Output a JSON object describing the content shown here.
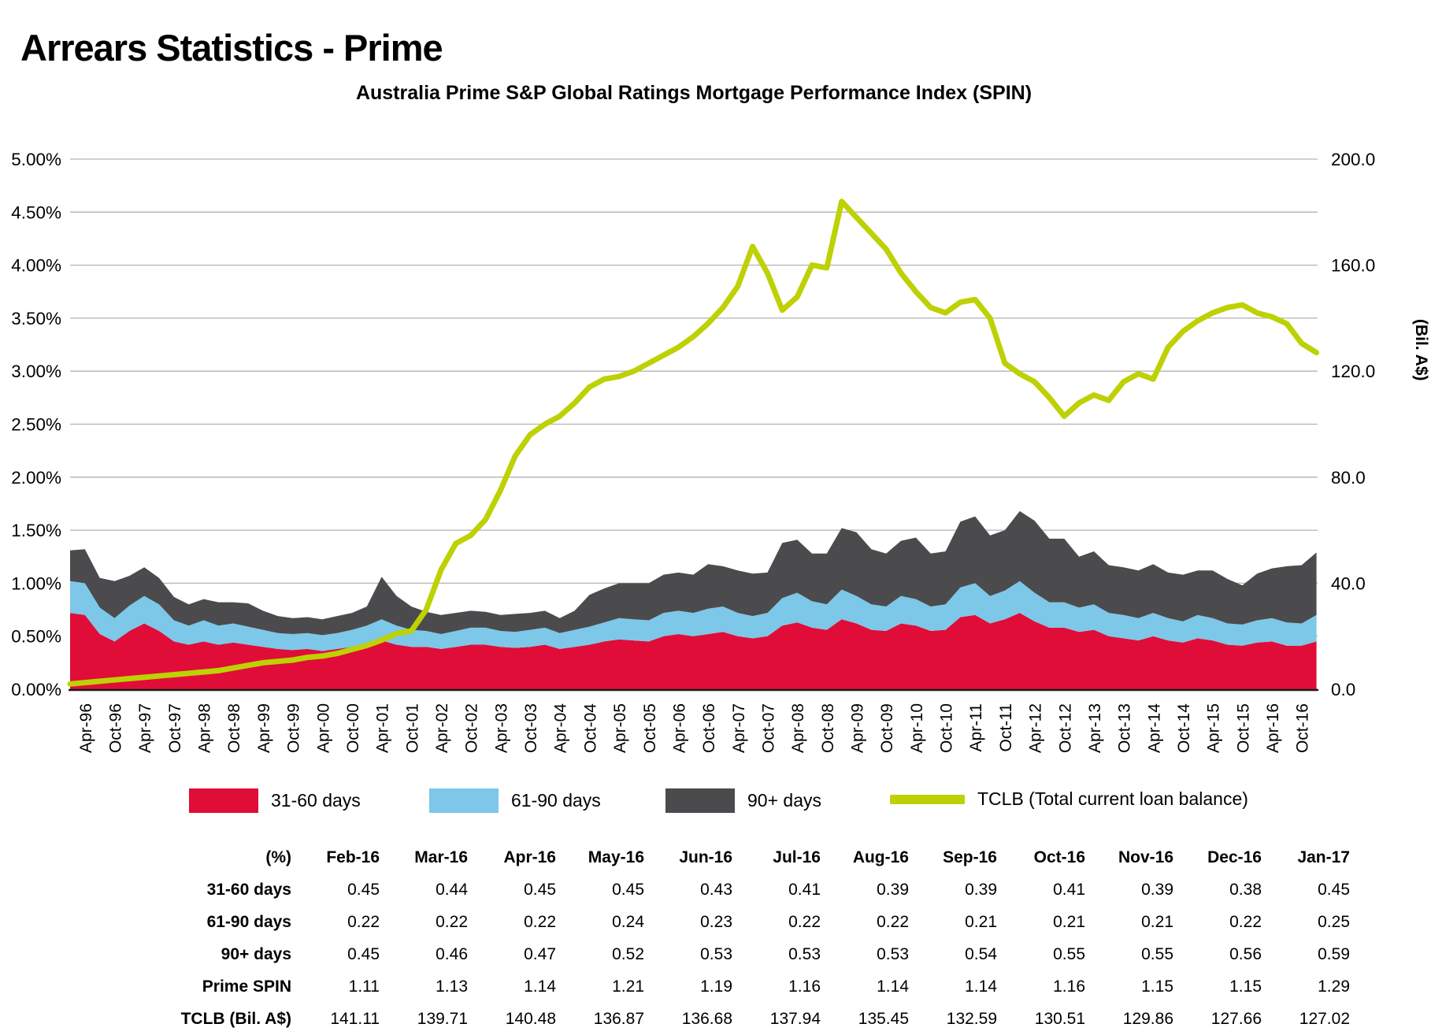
{
  "page": {
    "title": "Arrears Statistics - Prime"
  },
  "chart": {
    "subtitle": "Australia Prime S&P Global Ratings Mortgage Performance Index (SPIN)",
    "right_axis_title": "(Bil. A$)",
    "left_axis_labels": [
      "5.00%",
      "4.50%",
      "4.00%",
      "3.50%",
      "3.00%",
      "2.50%",
      "2.00%",
      "1.50%",
      "1.00%",
      "0.50%",
      "0.00%"
    ],
    "right_axis_labels": [
      "200.0",
      "160.0",
      "120.0",
      "80.0",
      "40.0",
      "0.0"
    ],
    "colors": {
      "red": "#e00d38",
      "blue": "#7dc7e8",
      "gray": "#4b4b4d",
      "lime": "#bdd104",
      "gridline": "#b3b3b3",
      "axis": "#1a1a1a"
    }
  },
  "legend": {
    "items": [
      {
        "label": "31-60 days",
        "color": "#e00d38",
        "type": "area"
      },
      {
        "label": "61-90 days",
        "color": "#7dc7e8",
        "type": "area"
      },
      {
        "label": "90+ days",
        "color": "#4b4b4d",
        "type": "area"
      },
      {
        "label": "TCLB (Total current loan balance)",
        "color": "#bdd104",
        "type": "line"
      }
    ]
  },
  "chart_data": {
    "type": "combo-stacked-area-plus-line",
    "title": "Australia Prime S&P Global Ratings Mortgage Performance Index (SPIN)",
    "x_start": "Jan-96",
    "x_step_months": 3,
    "x_end": "Jan-17",
    "left_axis": {
      "unit": "%",
      "min": 0,
      "max": 5,
      "gridline_step": 0.5
    },
    "right_axis": {
      "unit": "Bil. A$",
      "min": 0,
      "max": 200,
      "label_step": 40
    },
    "x_tick_labels": [
      "Apr-96",
      "Oct-96",
      "Apr-97",
      "Oct-97",
      "Apr-98",
      "Oct-98",
      "Apr-99",
      "Oct-99",
      "Apr-00",
      "Oct-00",
      "Apr-01",
      "Oct-01",
      "Apr-02",
      "Oct-02",
      "Apr-03",
      "Oct-03",
      "Apr-04",
      "Oct-04",
      "Apr-05",
      "Oct-05",
      "Apr-06",
      "Oct-06",
      "Apr-07",
      "Oct-07",
      "Apr-08",
      "Oct-08",
      "Apr-09",
      "Oct-09",
      "Apr-10",
      "Oct-10",
      "Apr-11",
      "Oct-11",
      "Apr-12",
      "Oct-12",
      "Apr-13",
      "Oct-13",
      "Apr-14",
      "Oct-14",
      "Apr-15",
      "Oct-15",
      "Apr-16",
      "Oct-16"
    ],
    "series": [
      {
        "name": "31-60 days",
        "type": "stacked-area",
        "axis": "left",
        "unit": "%",
        "color": "#e00d38",
        "values": [
          0.72,
          0.7,
          0.52,
          0.45,
          0.55,
          0.62,
          0.55,
          0.45,
          0.42,
          0.45,
          0.42,
          0.44,
          0.42,
          0.4,
          0.38,
          0.37,
          0.38,
          0.36,
          0.38,
          0.4,
          0.42,
          0.46,
          0.42,
          0.4,
          0.4,
          0.38,
          0.4,
          0.42,
          0.42,
          0.4,
          0.39,
          0.4,
          0.42,
          0.38,
          0.4,
          0.42,
          0.45,
          0.47,
          0.46,
          0.45,
          0.5,
          0.52,
          0.5,
          0.52,
          0.54,
          0.5,
          0.48,
          0.5,
          0.6,
          0.63,
          0.58,
          0.56,
          0.66,
          0.62,
          0.56,
          0.55,
          0.62,
          0.6,
          0.55,
          0.56,
          0.68,
          0.7,
          0.62,
          0.66,
          0.72,
          0.64,
          0.58,
          0.58,
          0.54,
          0.56,
          0.5,
          0.48,
          0.46,
          0.5,
          0.46,
          0.44,
          0.48,
          0.46,
          0.42,
          0.41,
          0.44,
          0.45,
          0.41,
          0.41,
          0.45
        ]
      },
      {
        "name": "61-90 days",
        "type": "stacked-area",
        "axis": "left",
        "unit": "%",
        "color": "#7dc7e8",
        "values": [
          0.3,
          0.3,
          0.25,
          0.22,
          0.24,
          0.26,
          0.25,
          0.2,
          0.18,
          0.2,
          0.18,
          0.18,
          0.17,
          0.16,
          0.15,
          0.15,
          0.15,
          0.15,
          0.15,
          0.16,
          0.18,
          0.2,
          0.18,
          0.16,
          0.15,
          0.14,
          0.15,
          0.16,
          0.16,
          0.15,
          0.15,
          0.16,
          0.16,
          0.15,
          0.16,
          0.17,
          0.18,
          0.2,
          0.2,
          0.2,
          0.22,
          0.22,
          0.22,
          0.24,
          0.24,
          0.22,
          0.21,
          0.22,
          0.26,
          0.28,
          0.25,
          0.24,
          0.28,
          0.26,
          0.24,
          0.23,
          0.26,
          0.25,
          0.23,
          0.24,
          0.28,
          0.3,
          0.26,
          0.27,
          0.3,
          0.27,
          0.24,
          0.24,
          0.23,
          0.24,
          0.22,
          0.22,
          0.21,
          0.22,
          0.21,
          0.2,
          0.22,
          0.21,
          0.2,
          0.2,
          0.21,
          0.22,
          0.22,
          0.21,
          0.25
        ]
      },
      {
        "name": "90+ days",
        "type": "stacked-area",
        "axis": "left",
        "unit": "%",
        "color": "#4b4b4d",
        "values": [
          0.29,
          0.32,
          0.28,
          0.35,
          0.28,
          0.27,
          0.25,
          0.22,
          0.2,
          0.2,
          0.22,
          0.2,
          0.22,
          0.18,
          0.16,
          0.15,
          0.15,
          0.15,
          0.16,
          0.16,
          0.18,
          0.4,
          0.28,
          0.22,
          0.18,
          0.18,
          0.17,
          0.16,
          0.15,
          0.15,
          0.17,
          0.16,
          0.16,
          0.14,
          0.18,
          0.3,
          0.32,
          0.33,
          0.34,
          0.35,
          0.36,
          0.36,
          0.36,
          0.42,
          0.38,
          0.4,
          0.4,
          0.38,
          0.52,
          0.5,
          0.45,
          0.48,
          0.58,
          0.6,
          0.52,
          0.5,
          0.52,
          0.58,
          0.5,
          0.5,
          0.62,
          0.63,
          0.57,
          0.57,
          0.66,
          0.68,
          0.6,
          0.6,
          0.48,
          0.5,
          0.45,
          0.45,
          0.45,
          0.46,
          0.43,
          0.44,
          0.42,
          0.45,
          0.42,
          0.37,
          0.44,
          0.47,
          0.53,
          0.55,
          0.59
        ]
      },
      {
        "name": "TCLB (Total current loan balance)",
        "type": "line",
        "axis": "right",
        "unit": "Bil. A$",
        "color": "#bdd104",
        "values": [
          2,
          2.5,
          3,
          3.5,
          4,
          4.5,
          5,
          5.5,
          6,
          6.5,
          7,
          8,
          9,
          10,
          10.5,
          11,
          12,
          12.5,
          13.5,
          15,
          16.5,
          18.5,
          21,
          22,
          30,
          45,
          55,
          58,
          64,
          75,
          88,
          96,
          100,
          103,
          108,
          114,
          117,
          118,
          120,
          123,
          126,
          129,
          133,
          138,
          144,
          152,
          167,
          157,
          143,
          148,
          160,
          159,
          184,
          178,
          172,
          166,
          157,
          150,
          144,
          142,
          146,
          147,
          140,
          123,
          119,
          116,
          110,
          103,
          108,
          111,
          109,
          116,
          119,
          117,
          129,
          135,
          139,
          142,
          144,
          145,
          142,
          140.5,
          137.9,
          130.5,
          127
        ]
      }
    ]
  },
  "table": {
    "header": [
      "(%)",
      "Feb-16",
      "Mar-16",
      "Apr-16",
      "May-16",
      "Jun-16",
      "Jul-16",
      "Aug-16",
      "Sep-16",
      "Oct-16",
      "Nov-16",
      "Dec-16",
      "Jan-17"
    ],
    "rows": [
      {
        "label": "31-60 days",
        "values": [
          "0.45",
          "0.44",
          "0.45",
          "0.45",
          "0.43",
          "0.41",
          "0.39",
          "0.39",
          "0.41",
          "0.39",
          "0.38",
          "0.45"
        ]
      },
      {
        "label": "61-90 days",
        "values": [
          "0.22",
          "0.22",
          "0.22",
          "0.24",
          "0.23",
          "0.22",
          "0.22",
          "0.21",
          "0.21",
          "0.21",
          "0.22",
          "0.25"
        ]
      },
      {
        "label": "90+ days",
        "values": [
          "0.45",
          "0.46",
          "0.47",
          "0.52",
          "0.53",
          "0.53",
          "0.53",
          "0.54",
          "0.55",
          "0.55",
          "0.56",
          "0.59"
        ]
      },
      {
        "label": "Prime SPIN",
        "values": [
          "1.11",
          "1.13",
          "1.14",
          "1.21",
          "1.19",
          "1.16",
          "1.14",
          "1.14",
          "1.16",
          "1.15",
          "1.15",
          "1.29"
        ]
      },
      {
        "label": "TCLB (Bil. A$)",
        "values": [
          "141.11",
          "139.71",
          "140.48",
          "136.87",
          "136.68",
          "137.94",
          "135.45",
          "132.59",
          "130.51",
          "129.86",
          "127.66",
          "127.02"
        ]
      }
    ]
  }
}
